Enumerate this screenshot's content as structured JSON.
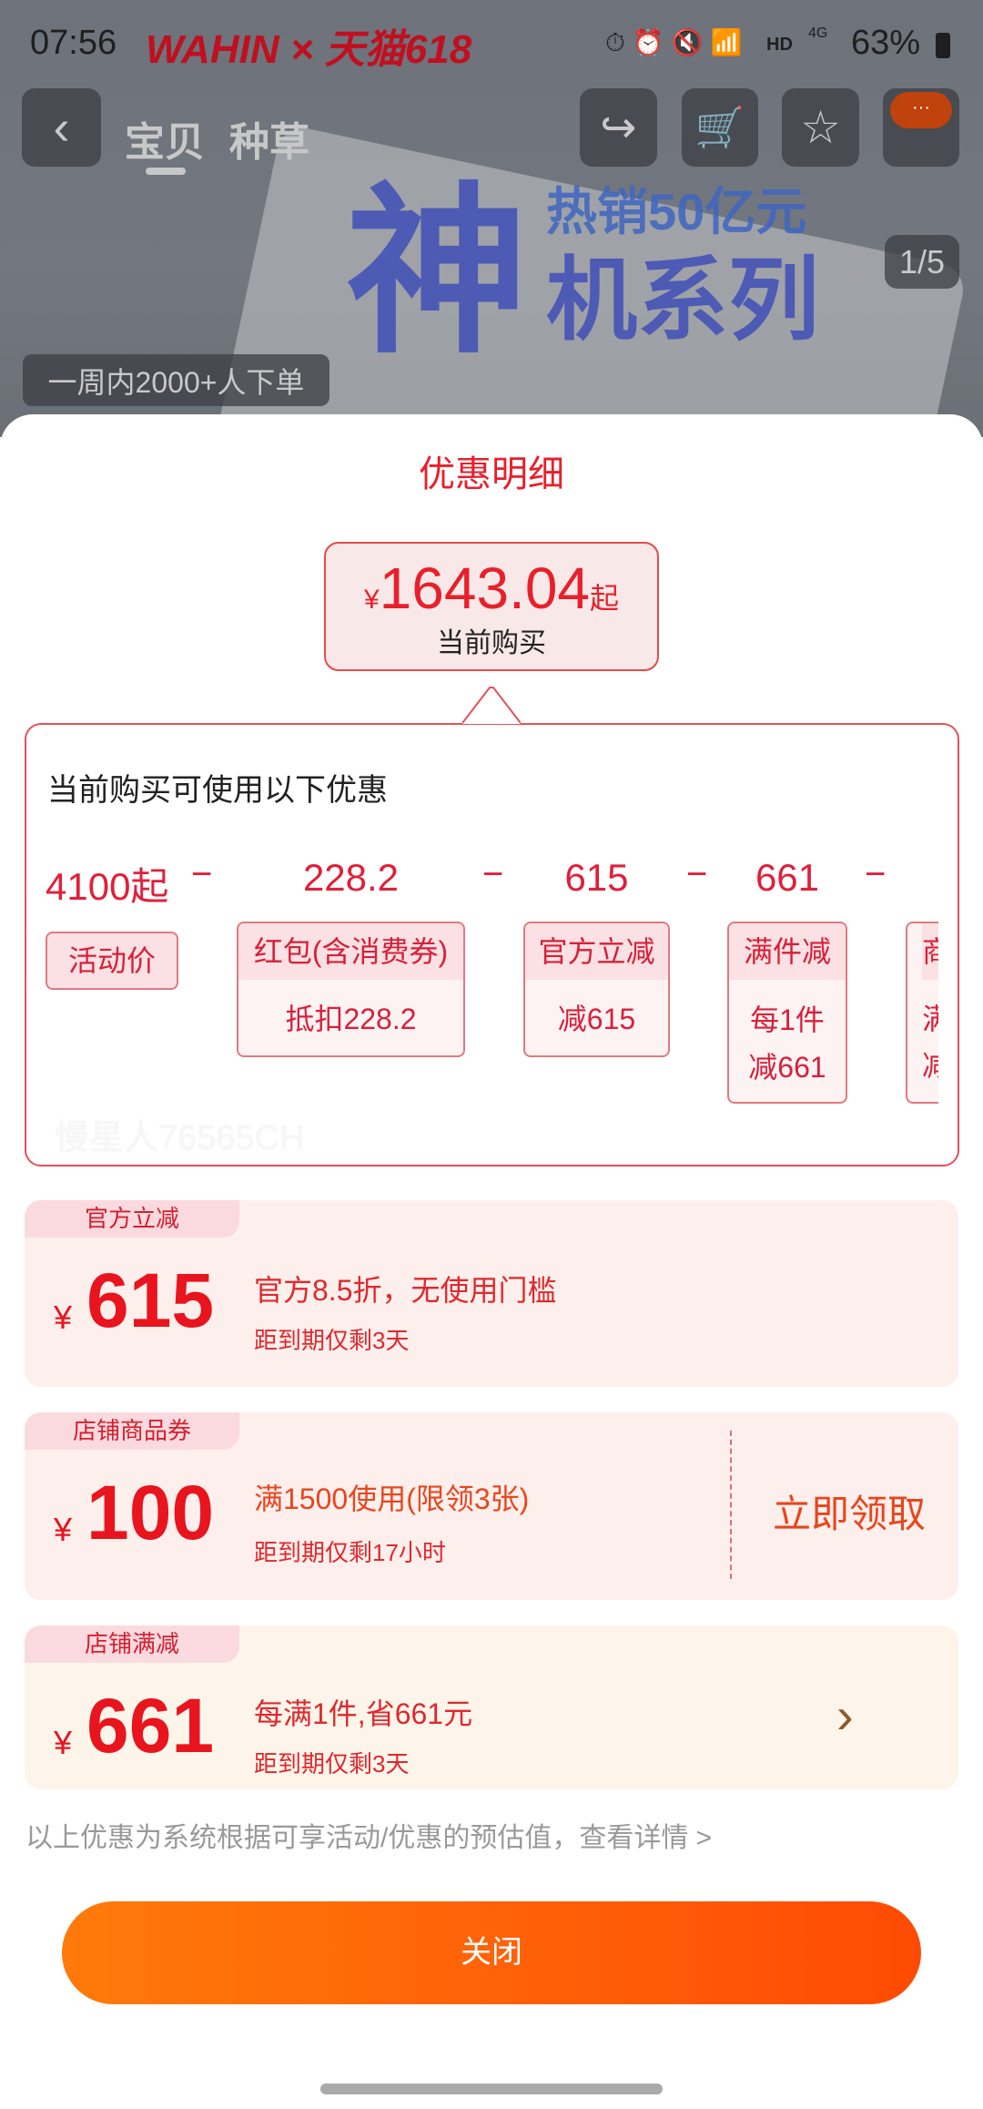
{
  "status_bar": {
    "time": "07:56",
    "battery": "63%",
    "network": "4G",
    "hd": "HD"
  },
  "hero": {
    "brand": "WAHIN × 天猫618",
    "slogan_big": "神",
    "slogan_line1": "热销50亿元",
    "slogan_line2": "机系列",
    "tabs": [
      "宝贝",
      "种草"
    ],
    "image_counter": "1/5",
    "sales_badge": "一周内2000+人下单"
  },
  "sheet": {
    "title": "优惠明细",
    "price": {
      "currency": "¥",
      "value": "1643.04",
      "suffix": "起",
      "caption": "当前购买"
    },
    "breakdown": {
      "heading": "当前购买可使用以下优惠",
      "base": {
        "value": "4100起",
        "label": "活动价"
      },
      "operator": "−",
      "items": [
        {
          "value": "228.2",
          "title": "红包(含消费券)",
          "lines": [
            "抵扣228.2"
          ]
        },
        {
          "value": "615",
          "title": "官方立减",
          "lines": [
            "减615"
          ]
        },
        {
          "value": "661",
          "title": "满件减",
          "lines": [
            "每1件",
            "减661"
          ]
        },
        {
          "value": "",
          "title": "商",
          "lines": [
            "满",
            "减"
          ]
        }
      ],
      "watermark": "慢星人76565CH"
    },
    "coupons": [
      {
        "tag": "官方立减",
        "currency": "¥",
        "amount": "615",
        "desc": "官方8.5折，无使用门槛",
        "expiry": "距到期仅剩3天"
      },
      {
        "tag": "店铺商品券",
        "currency": "¥",
        "amount": "100",
        "desc": "满1500使用(限领3张)",
        "expiry": "距到期仅剩17小时",
        "action": "立即领取"
      },
      {
        "tag": "店铺满减",
        "currency": "¥",
        "amount": "661",
        "desc": "每满1件,省661元",
        "expiry": "距到期仅剩3天",
        "chevron": "›"
      }
    ],
    "footnote": "以上优惠为系统根据可享活动/优惠的预估值，查看详情 >",
    "close_label": "关闭"
  },
  "colors": {
    "accent": "#e8202c",
    "button_start": "#ff7a0a",
    "button_end": "#ff4b05",
    "card_pink": "#fdefec",
    "card_cream": "#fdf5ea"
  }
}
